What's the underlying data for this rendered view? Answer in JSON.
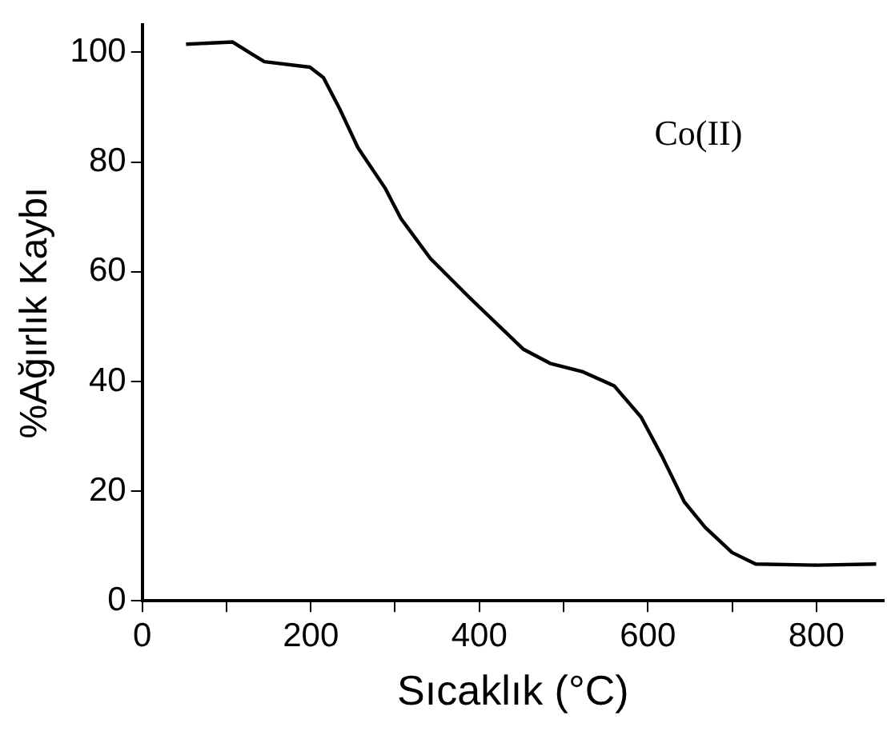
{
  "chart_data": {
    "type": "line",
    "xlabel": "Sıcaklık (°C)",
    "ylabel": "%Ağırlık Kaybı",
    "annotations": [
      "Co(II)"
    ],
    "x": [
      52,
      107,
      129,
      145,
      199,
      215,
      234,
      256,
      288,
      307,
      342,
      389,
      452,
      484,
      522,
      560,
      592,
      617,
      643,
      668,
      700,
      728,
      801,
      871
    ],
    "series": [
      {
        "color": "#000000",
        "values": [
          101.5,
          101.9,
          99.8,
          98.3,
          97.3,
          95.4,
          89.8,
          82.6,
          75.3,
          69.7,
          62.4,
          55.2,
          45.9,
          43.3,
          41.8,
          39.2,
          33.5,
          26.3,
          18.1,
          13.4,
          8.8,
          6.7,
          6.5,
          6.7
        ]
      }
    ],
    "xlim": [
      0,
      880
    ],
    "xticks": [
      0,
      {
        "value": 100,
        "label": null
      },
      200,
      {
        "value": 300,
        "label": null
      },
      400,
      {
        "value": 500,
        "label": null
      },
      600,
      {
        "value": 700,
        "label": null
      },
      800
    ],
    "ylim": [
      0,
      105
    ],
    "yticks": [
      0,
      20,
      40,
      60,
      80,
      100
    ],
    "grid": false,
    "legend": false,
    "marker": "none",
    "line_style": "solid"
  }
}
